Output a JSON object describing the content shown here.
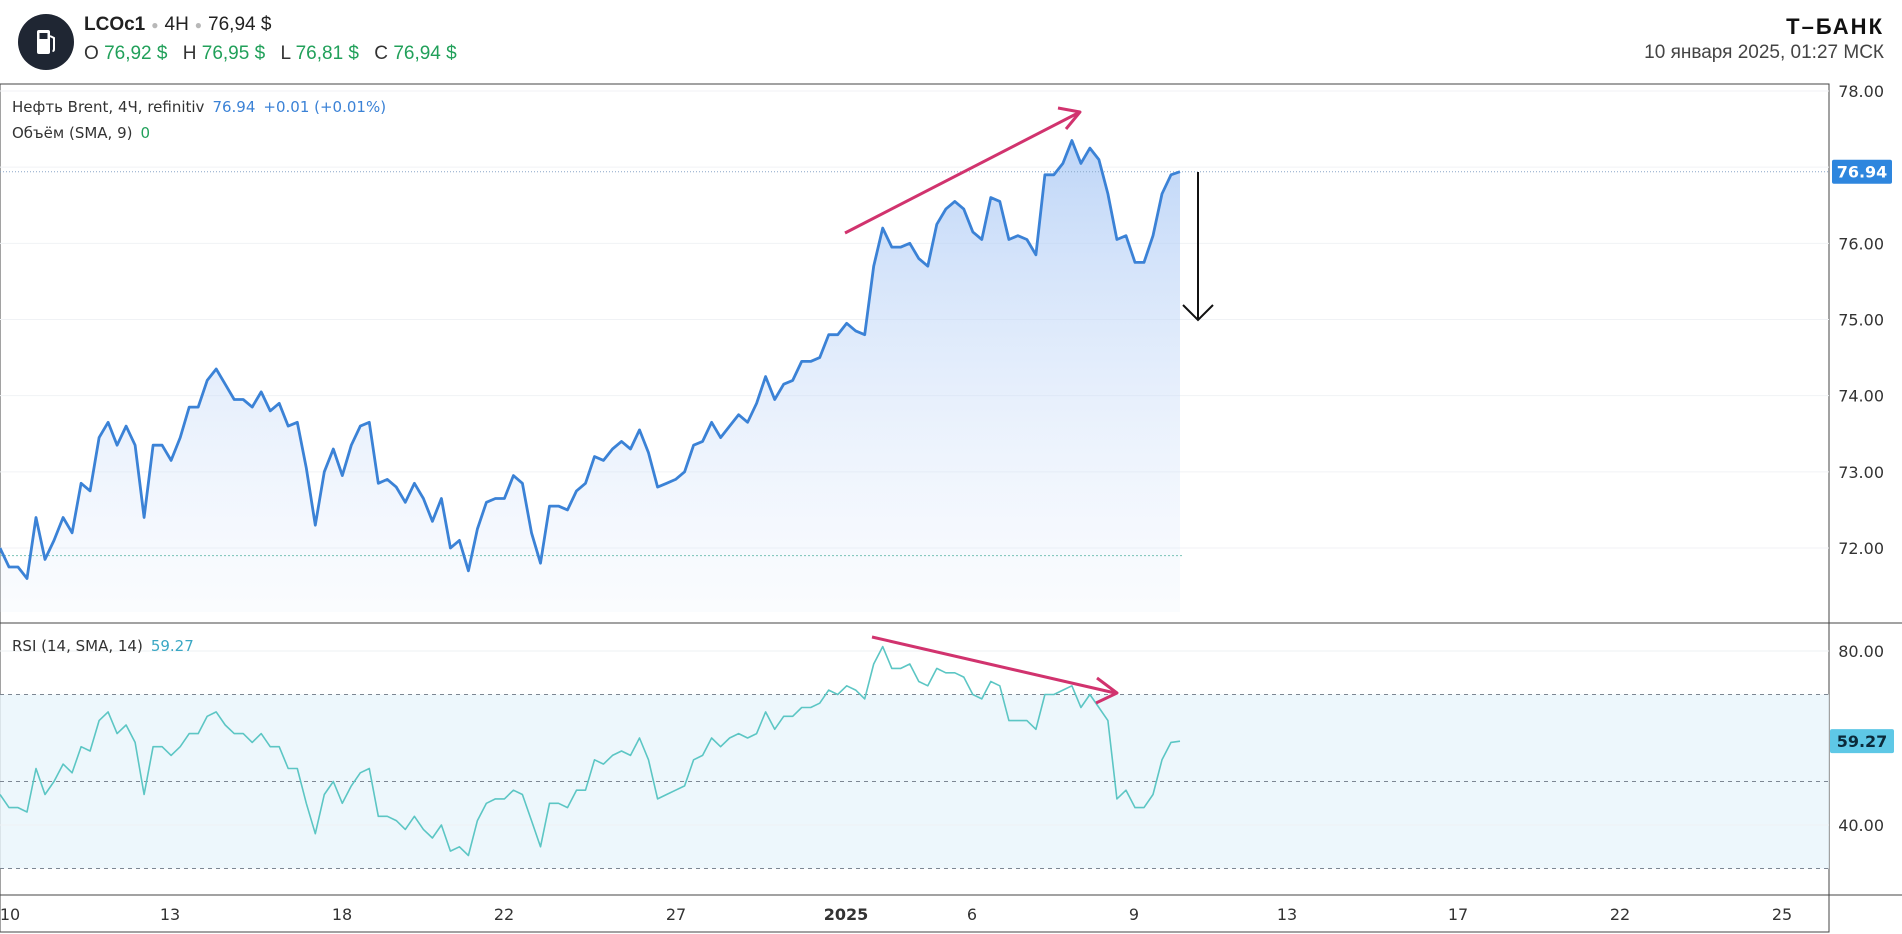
{
  "header": {
    "logo_icon": "fuel-pump-icon",
    "symbol": "LCOc1",
    "interval": "4H",
    "last": "76,94 $",
    "ohlc": [
      {
        "label": "O",
        "value": "76,92 $"
      },
      {
        "label": "H",
        "value": "76,95 $"
      },
      {
        "label": "L",
        "value": "76,81 $"
      },
      {
        "label": "C",
        "value": "76,94 $"
      }
    ],
    "brand": "Т–БАНК",
    "datetime": "10 января 2025, 01:27 МСК"
  },
  "legend": {
    "price_title": "Нефть Brent, 4Ч, refinitiv",
    "price_value": "76.94",
    "price_change": "+0.01 (+0.01%)",
    "volume_title": "Объём (SMA, 9)",
    "volume_value": "0",
    "rsi_title": "RSI (14, SMA, 14)",
    "rsi_value": "59.27"
  },
  "colors": {
    "price_line": "#3b82d6",
    "rsi_line": "#5cc6c4",
    "arrow_trend": "#d1336e",
    "label_bg": "#2e86de"
  },
  "chart_data": [
    {
      "type": "area",
      "ylim": [
        71.3,
        78.1
      ],
      "yticks": [
        "78.00",
        "76.00",
        "75.00",
        "74.00",
        "73.00",
        "72.00"
      ],
      "last_value_label": "76.94",
      "x_ticks": [
        "10",
        "13",
        "18",
        "22",
        "27",
        "2025",
        "6",
        "9",
        "13",
        "17",
        "22",
        "25"
      ],
      "series": [
        {
          "values": [
            72.0,
            71.75,
            71.75,
            71.6,
            72.4,
            71.85,
            72.1,
            72.4,
            72.2,
            72.85,
            72.75,
            73.45,
            73.65,
            73.35,
            73.6,
            73.35,
            72.4,
            73.35,
            73.35,
            73.15,
            73.45,
            73.85,
            73.85,
            74.2,
            74.35,
            74.15,
            73.95,
            73.95,
            73.85,
            74.05,
            73.8,
            73.9,
            73.6,
            73.65,
            73.05,
            72.3,
            73.0,
            73.3,
            72.95,
            73.35,
            73.6,
            73.65,
            72.85,
            72.9,
            72.8,
            72.6,
            72.85,
            72.65,
            72.35,
            72.65,
            72.0,
            72.1,
            71.7,
            72.25,
            72.6,
            72.65,
            72.65,
            72.95,
            72.85,
            72.2,
            71.8,
            72.55,
            72.55,
            72.5,
            72.75,
            72.85,
            73.2,
            73.15,
            73.3,
            73.4,
            73.3,
            73.55,
            73.25,
            72.8,
            72.85,
            72.9,
            73.0,
            73.35,
            73.4,
            73.65,
            73.45,
            73.6,
            73.75,
            73.65,
            73.9,
            74.25,
            73.95,
            74.15,
            74.2,
            74.45,
            74.45,
            74.5,
            74.8,
            74.8,
            74.95,
            74.85,
            74.8,
            75.7,
            76.2,
            75.95,
            75.95,
            76.0,
            75.8,
            75.7,
            76.25,
            76.45,
            76.55,
            76.45,
            76.15,
            76.05,
            76.6,
            76.55,
            76.05,
            76.1,
            76.05,
            75.85,
            76.9,
            76.9,
            77.05,
            77.35,
            77.05,
            77.25,
            77.1,
            76.65,
            76.05,
            76.1,
            75.75,
            75.75,
            76.1,
            76.65,
            76.9,
            76.94
          ]
        }
      ],
      "annotations": [
        "trend-up-arrow",
        "down-arrow"
      ]
    },
    {
      "type": "line",
      "ylim": [
        25,
        84
      ],
      "yticks": [
        "80.00",
        "40.00"
      ],
      "last_value_label": "59.27",
      "bands": [
        30,
        50,
        70
      ],
      "series": [
        {
          "values": [
            47,
            44,
            44,
            43,
            53,
            47,
            50,
            54,
            52,
            58,
            57,
            64,
            66,
            61,
            63,
            59,
            47,
            58,
            58,
            56,
            58,
            61,
            61,
            65,
            66,
            63,
            61,
            61,
            59,
            61,
            58,
            58,
            53,
            53,
            45,
            38,
            47,
            50,
            45,
            49,
            52,
            53,
            42,
            42,
            41,
            39,
            42,
            39,
            37,
            40,
            34,
            35,
            33,
            41,
            45,
            46,
            46,
            48,
            47,
            41,
            35,
            45,
            45,
            44,
            48,
            48,
            55,
            54,
            56,
            57,
            56,
            60,
            55,
            46,
            47,
            48,
            49,
            55,
            56,
            60,
            58,
            60,
            61,
            60,
            61,
            66,
            62,
            65,
            65,
            67,
            67,
            68,
            71,
            70,
            72,
            71,
            69,
            77,
            81,
            76,
            76,
            77,
            73,
            72,
            76,
            75,
            75,
            74,
            70,
            69,
            73,
            72,
            64,
            64,
            64,
            62,
            70,
            70,
            71,
            72,
            67,
            70,
            67,
            64,
            46,
            48,
            44,
            44,
            47,
            55,
            59,
            59.27
          ]
        }
      ],
      "annotations": [
        "trend-down-arrow"
      ]
    }
  ]
}
